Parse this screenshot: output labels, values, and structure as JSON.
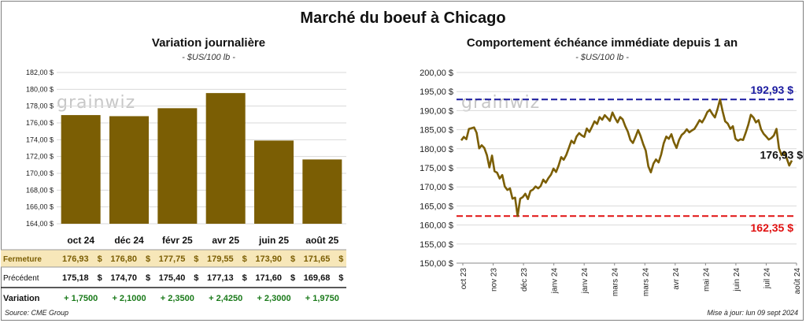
{
  "title": "Marché du boeuf à Chicago",
  "left_panel": {
    "title": "Variation journalière",
    "unit": "- $US/100 lb -",
    "watermark": "grainwiz"
  },
  "right_panel": {
    "title": "Comportement échéance immédiate depuis 1 an",
    "unit": "- $US/100 lb -",
    "watermark": "grainwiz"
  },
  "table": {
    "rows": [
      {
        "label": "Fermeture",
        "values": [
          "176,93",
          "176,80",
          "177,75",
          "179,55",
          "173,90",
          "171,65"
        ],
        "suffix": "$"
      },
      {
        "label": "Précédent",
        "values": [
          "175,18",
          "174,70",
          "175,40",
          "177,13",
          "171,60",
          "169,68"
        ],
        "suffix": "$"
      },
      {
        "label": "Variation",
        "values": [
          "+ 1,7500",
          "+ 2,1000",
          "+ 2,3500",
          "+ 2,4250",
          "+ 2,3000",
          "+ 1,9750"
        ],
        "suffix": ""
      }
    ]
  },
  "footer": {
    "source": "Source: CME Group",
    "updated": "Mise à jour: lun 09 sept 2024"
  },
  "colors": {
    "bar": "#7b5e04",
    "line": "#7b5e04",
    "high": "#1a1aa0",
    "low": "#e01010",
    "fermeture_bg": "#f7e7b9",
    "variation_text": "#1a7a1a"
  },
  "chart_data": [
    {
      "type": "bar",
      "title": "Variation journalière",
      "ylabel": "",
      "categories": [
        "oct 24",
        "déc 24",
        "févr 25",
        "avr 25",
        "juin 25",
        "août 25"
      ],
      "values": [
        176.93,
        176.8,
        177.75,
        179.55,
        173.9,
        171.65
      ],
      "ylim": [
        164,
        182
      ],
      "yticks": [
        "164,00 $",
        "166,00 $",
        "168,00 $",
        "170,00 $",
        "172,00 $",
        "174,00 $",
        "176,00 $",
        "178,00 $",
        "180,00 $",
        "182,00 $"
      ],
      "grid": true
    },
    {
      "type": "line",
      "title": "Comportement échéance immédiate depuis 1 an",
      "ylim": [
        150,
        200
      ],
      "yticks": [
        "150,00 $",
        "155,00 $",
        "160,00 $",
        "165,00 $",
        "170,00 $",
        "175,00 $",
        "180,00 $",
        "185,00 $",
        "190,00 $",
        "195,00 $",
        "200,00 $"
      ],
      "xticks": [
        "oct 23",
        "nov 23",
        "déc 23",
        "janv 24",
        "janv 24",
        "mars 24",
        "mars 24",
        "avr 24",
        "mai 24",
        "juin 24",
        "juil 24",
        "août 24"
      ],
      "series": [
        {
          "values": [
            182.2,
            183.1,
            182.5,
            185.2,
            185.4,
            185.6,
            184.2,
            180.1,
            180.9,
            180.2,
            178.3,
            175.1,
            178.2,
            174.1,
            173.7,
            172.2,
            173.1,
            170.1,
            169.2,
            169.6,
            166.9,
            167.2,
            162.35,
            166.9,
            167.3,
            168.2,
            166.8,
            168.9,
            169.3,
            170.1,
            169.6,
            170.2,
            171.9,
            171.1,
            172.3,
            173.2,
            174.8,
            173.9,
            175.6,
            177.8,
            177.1,
            178.4,
            180.2,
            182.1,
            181.4,
            183.2,
            184.1,
            183.5,
            183.1,
            185.3,
            184.4,
            185.7,
            187.2,
            186.5,
            188.3,
            187.6,
            188.8,
            188.1,
            187.3,
            189.5,
            188.1,
            186.9,
            188.3,
            187.7,
            185.9,
            184.5,
            182.3,
            181.5,
            183.1,
            184.9,
            183.3,
            181.2,
            179.5,
            175.4,
            173.8,
            176.1,
            177.2,
            176.4,
            178.5,
            181.4,
            183.2,
            182.6,
            183.8,
            181.7,
            180.2,
            182.3,
            183.6,
            184.2,
            185.1,
            184.3,
            184.8,
            185.2,
            186.3,
            187.5,
            186.9,
            188.1,
            189.6,
            190.2,
            189.1,
            188.2,
            190.4,
            192.93,
            189.8,
            187.2,
            186.6,
            185.2,
            185.9,
            182.6,
            182.1,
            182.5,
            182.3,
            184.2,
            186.3,
            188.9,
            188.2,
            186.9,
            187.5,
            185.1,
            183.9,
            183.2,
            182.4,
            182.8,
            183.5,
            185.2,
            180.1,
            178.3,
            179.2,
            177.5,
            175.6,
            176.93
          ]
        }
      ],
      "annotations": [
        {
          "label": "192,93 $",
          "value": 192.93
        },
        {
          "label": "176,93 $",
          "value": 176.93
        },
        {
          "label": "162,35 $",
          "value": 162.35
        }
      ],
      "grid": true
    }
  ]
}
